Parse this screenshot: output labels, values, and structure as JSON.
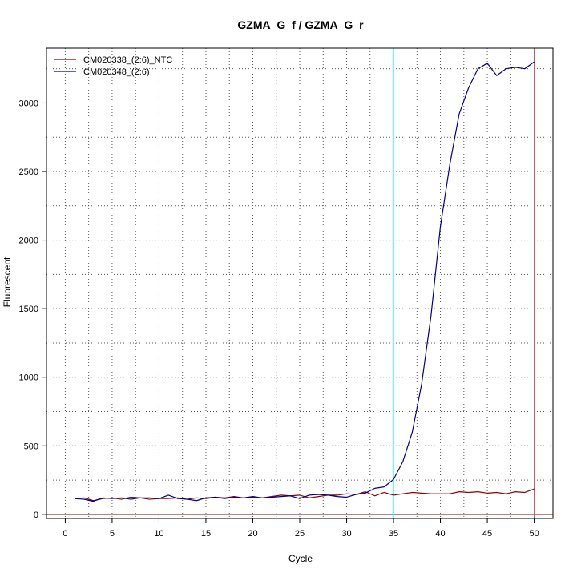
{
  "chart_data": {
    "type": "line",
    "title": "GZMA_G_f / GZMA_G_r",
    "xlabel": "Cycle",
    "ylabel": "Fluorescent",
    "xlim": [
      -2,
      52
    ],
    "ylim": [
      -30,
      3400
    ],
    "x_ticks": [
      0,
      5,
      10,
      15,
      20,
      25,
      30,
      35,
      40,
      45,
      50
    ],
    "y_ticks": [
      0,
      500,
      1000,
      1500,
      2000,
      2500,
      3000
    ],
    "x_tick_labels": [
      "0",
      "5",
      "10",
      "15",
      "20",
      "25",
      "30",
      "35",
      "40",
      "45",
      "50"
    ],
    "y_tick_labels": [
      "0",
      "500",
      "1000",
      "1500",
      "2000",
      "2500",
      "3000"
    ],
    "grid": true,
    "legend_position": "top-left",
    "x": [
      1,
      2,
      3,
      4,
      5,
      6,
      7,
      8,
      9,
      10,
      11,
      12,
      13,
      14,
      15,
      16,
      17,
      18,
      19,
      20,
      21,
      22,
      23,
      24,
      25,
      26,
      27,
      28,
      29,
      30,
      31,
      32,
      33,
      34,
      35,
      36,
      37,
      38,
      39,
      40,
      41,
      42,
      43,
      44,
      45,
      46,
      47,
      48,
      49,
      50
    ],
    "series": [
      {
        "name": "CM020338_(2:6)_NTC",
        "color": "#8b0000",
        "values": [
          115,
          120,
          100,
          115,
          120,
          110,
          125,
          120,
          110,
          115,
          115,
          120,
          110,
          120,
          115,
          125,
          120,
          130,
          120,
          125,
          120,
          130,
          140,
          135,
          140,
          120,
          130,
          140,
          140,
          150,
          145,
          165,
          135,
          160,
          140,
          150,
          160,
          155,
          150,
          150,
          150,
          165,
          160,
          165,
          155,
          160,
          150,
          165,
          160,
          185
        ]
      },
      {
        "name": "CM020348_(2:6)",
        "color": "#00008b",
        "values": [
          115,
          110,
          95,
          120,
          115,
          120,
          110,
          120,
          120,
          115,
          140,
          115,
          110,
          100,
          120,
          125,
          115,
          125,
          120,
          130,
          120,
          125,
          130,
          135,
          115,
          140,
          145,
          140,
          130,
          125,
          145,
          155,
          190,
          200,
          255,
          385,
          600,
          950,
          1450,
          2100,
          2550,
          2920,
          3110,
          3250,
          3290,
          3200,
          3250,
          3260,
          3250,
          3300
        ]
      }
    ],
    "reference_lines": [
      {
        "axis": "y",
        "value": 0,
        "color": "#8b0000"
      },
      {
        "axis": "x",
        "value": 35,
        "color": "#00ffff"
      },
      {
        "axis": "x",
        "value": 50,
        "color": "#cd5c5c"
      }
    ]
  }
}
